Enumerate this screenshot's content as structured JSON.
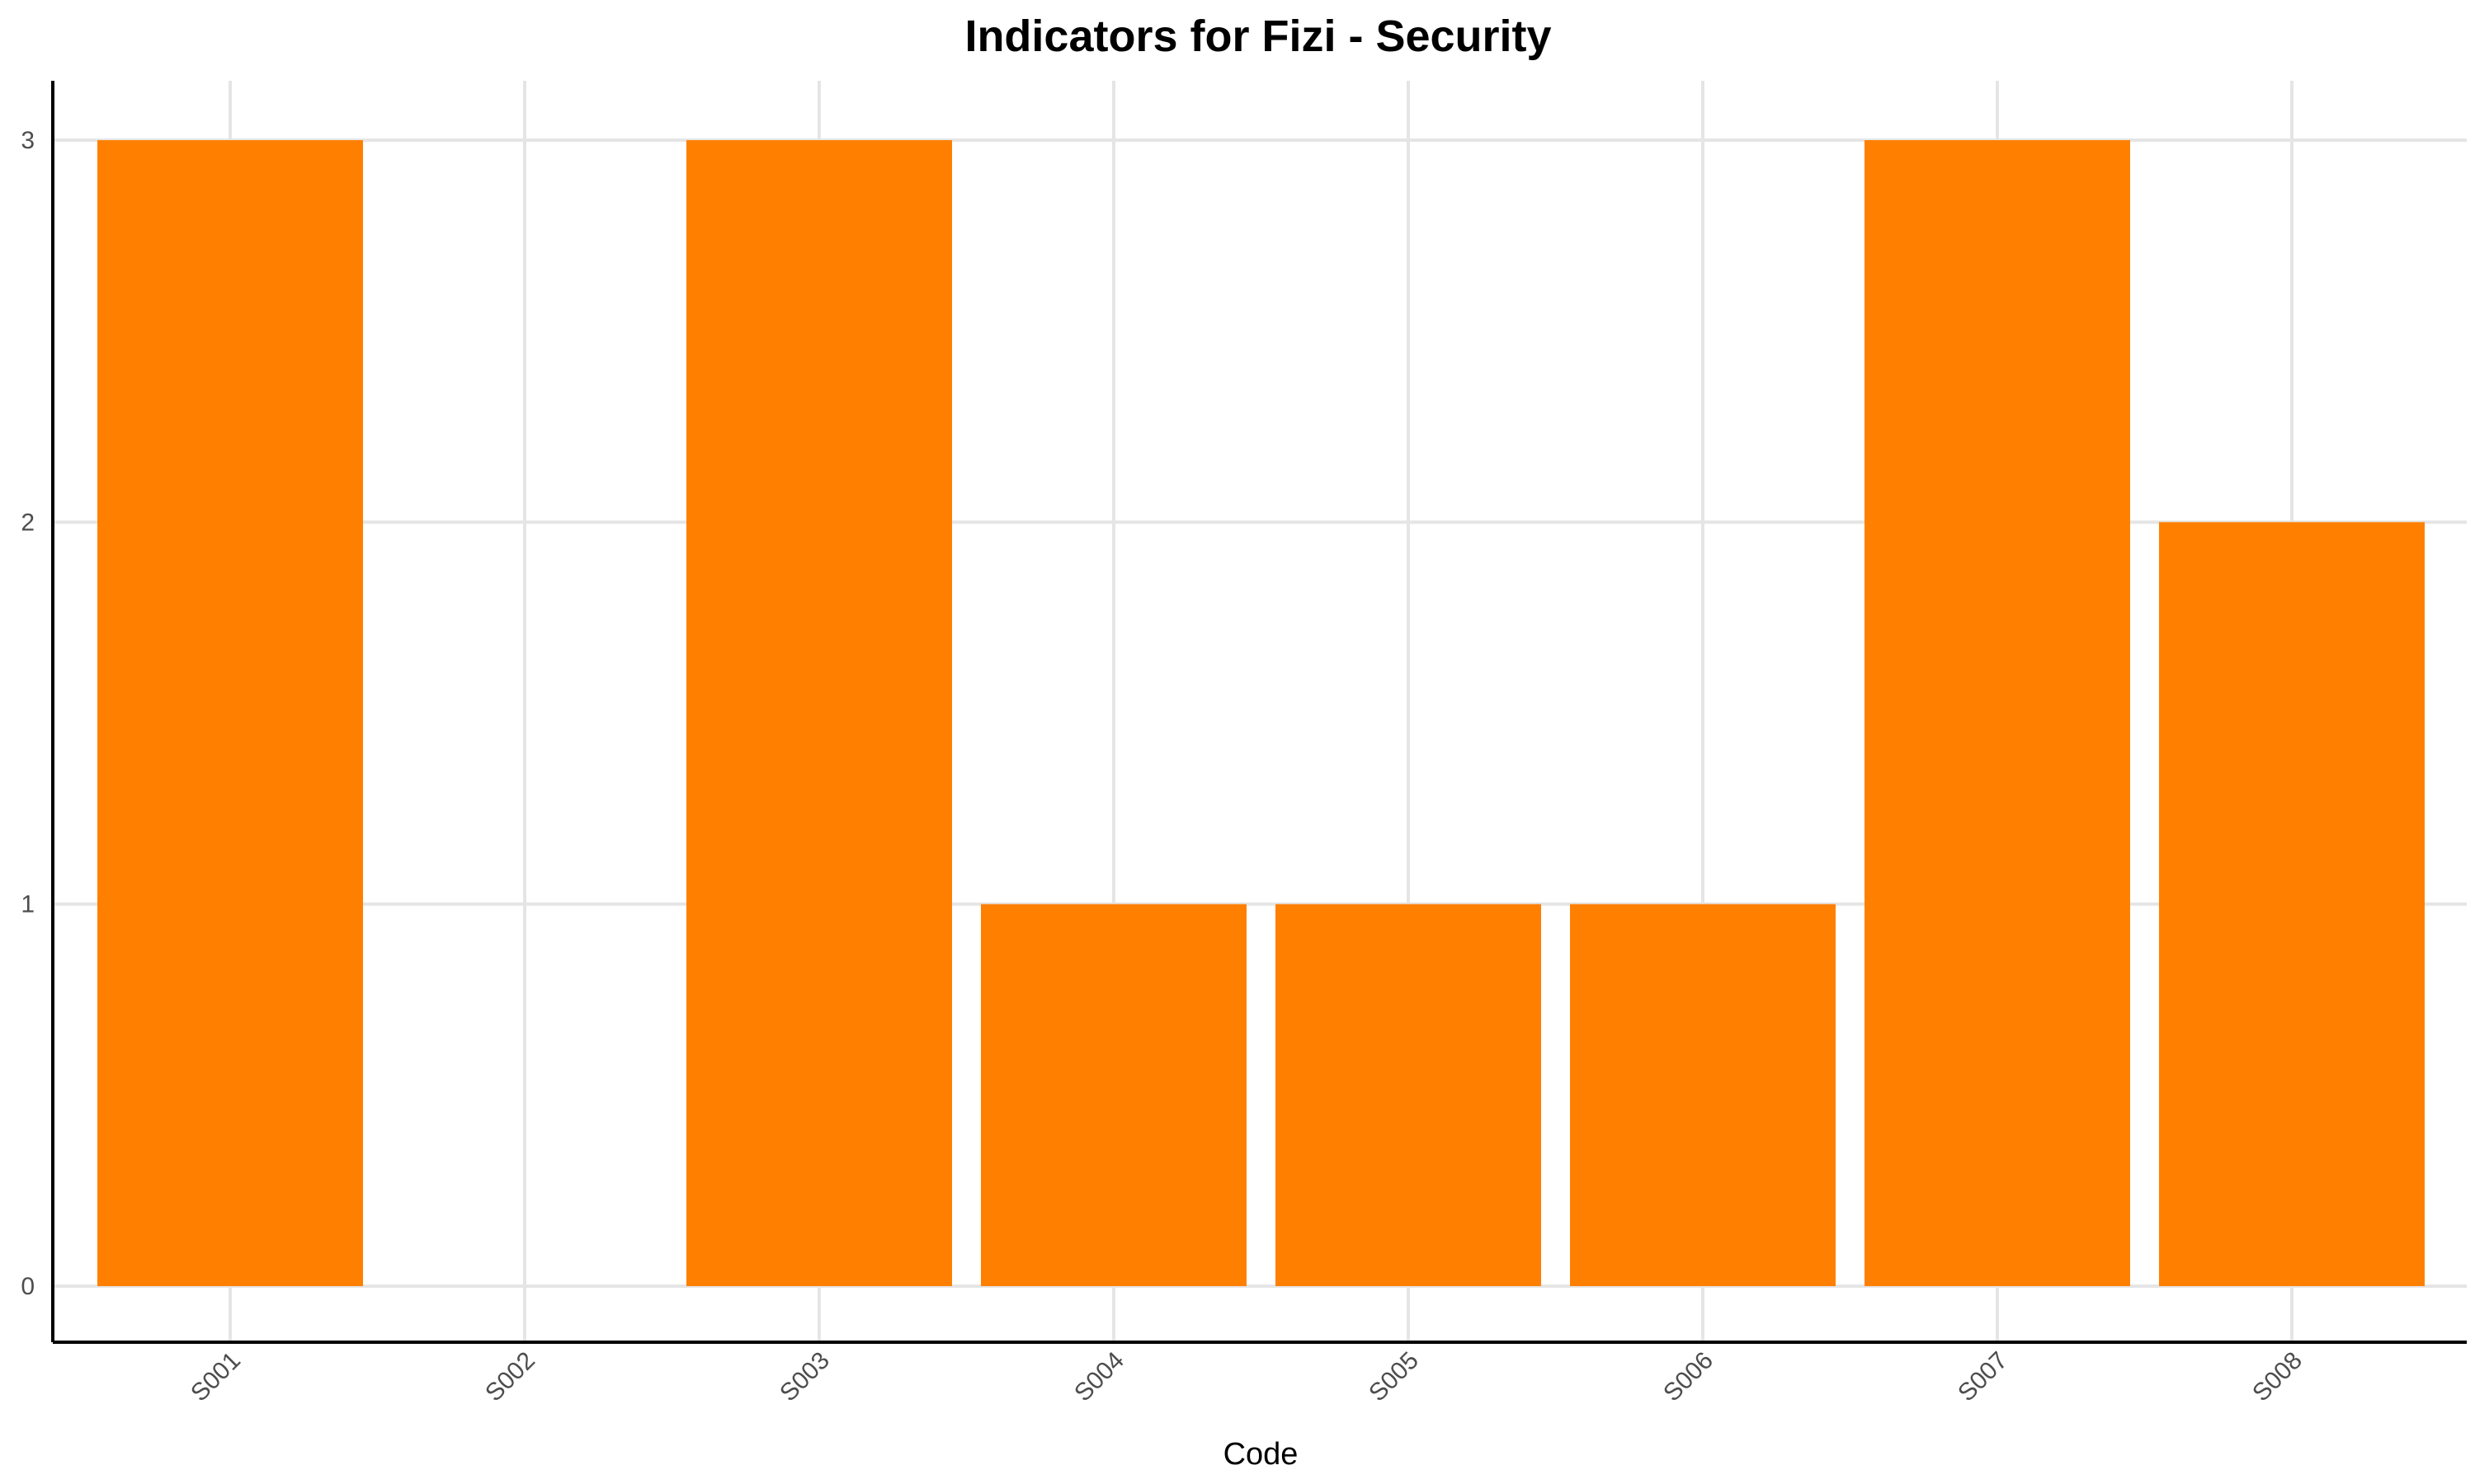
{
  "chart_data": {
    "type": "bar",
    "title": "Indicators for Fizi - Security",
    "xlabel": "Code",
    "ylabel": "",
    "categories": [
      "S001",
      "S002",
      "S003",
      "S004",
      "S005",
      "S006",
      "S007",
      "S008"
    ],
    "values": [
      3,
      0,
      3,
      1,
      1,
      1,
      3,
      2
    ],
    "ylim": [
      0,
      3
    ],
    "yticks": [
      "0",
      "1",
      "2",
      "3"
    ],
    "grid": true,
    "legend": "none",
    "bar_color": "#ff8000",
    "x_tick_rotation": "45 degrees"
  }
}
